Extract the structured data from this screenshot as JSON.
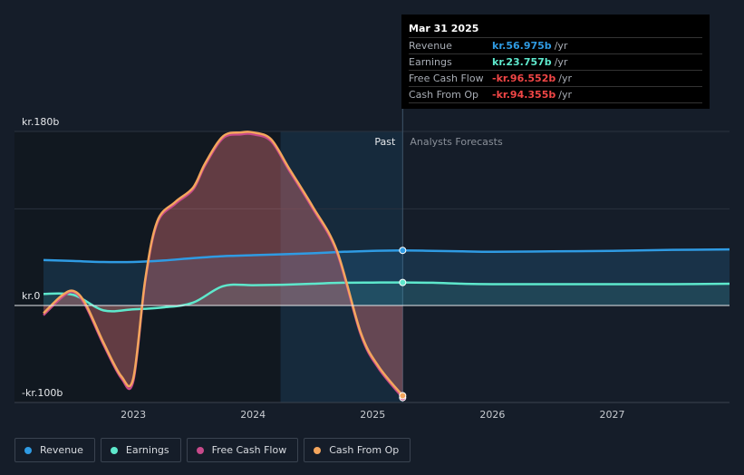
{
  "tooltip": {
    "date": "Mar 31 2025",
    "rows": [
      {
        "label": "Revenue",
        "value": "kr.56.975b",
        "unit": "/yr",
        "color": "#2f9be3"
      },
      {
        "label": "Earnings",
        "value": "kr.23.757b",
        "unit": "/yr",
        "color": "#5ee8cc"
      },
      {
        "label": "Free Cash Flow",
        "value": "-kr.96.552b",
        "unit": "/yr",
        "color": "#f04646"
      },
      {
        "label": "Cash From Op",
        "value": "-kr.94.355b",
        "unit": "/yr",
        "color": "#f04646"
      }
    ]
  },
  "legend": [
    {
      "label": "Revenue",
      "color": "#2f9be3"
    },
    {
      "label": "Earnings",
      "color": "#5ee8cc"
    },
    {
      "label": "Free Cash Flow",
      "color": "#c74a8b"
    },
    {
      "label": "Cash From Op",
      "color": "#f4a65d"
    }
  ],
  "chart_data": {
    "type": "line",
    "past_label": "Past",
    "forecast_label": "Analysts Forecasts",
    "ylabels": [
      {
        "text": "kr.180b",
        "value": 180
      },
      {
        "text": "kr.0",
        "value": 0
      },
      {
        "text": "-kr.100b",
        "value": -100
      }
    ],
    "ylim": [
      -100,
      180
    ],
    "xlim": [
      2022.25,
      2027.98
    ],
    "xticks": [
      {
        "text": "2023",
        "value": 2023.0
      },
      {
        "text": "2024",
        "value": 2024.0
      },
      {
        "text": "2025",
        "value": 2025.0
      },
      {
        "text": "2026",
        "value": 2026.0
      },
      {
        "text": "2027",
        "value": 2027.0
      }
    ],
    "past_end": 2025.25,
    "highlight_start": 2024.23,
    "gridlines": [
      180,
      100
    ],
    "series": [
      {
        "name": "Revenue",
        "color": "#2f9be3",
        "x": [
          2022.25,
          2022.5,
          2022.75,
          2023.0,
          2023.25,
          2023.5,
          2023.75,
          2024.0,
          2024.25,
          2024.5,
          2024.75,
          2025.0,
          2025.25,
          2025.5,
          2025.75,
          2026.0,
          2026.5,
          2027.0,
          2027.5,
          2027.98
        ],
        "y": [
          47,
          46,
          45,
          45,
          46.5,
          49,
          51,
          52,
          53,
          54,
          55.5,
          56.5,
          57,
          56.5,
          56,
          55.5,
          56,
          56.5,
          57.5,
          58
        ]
      },
      {
        "name": "Earnings",
        "color": "#5ee8cc",
        "x": [
          2022.25,
          2022.5,
          2022.75,
          2023.0,
          2023.25,
          2023.5,
          2023.75,
          2024.0,
          2024.25,
          2024.5,
          2024.75,
          2025.0,
          2025.25,
          2025.5,
          2025.75,
          2026.0,
          2026.5,
          2027.0,
          2027.5,
          2027.98
        ],
        "y": [
          12,
          11,
          -5,
          -4,
          -2,
          3,
          20,
          21,
          21.5,
          22.5,
          23.5,
          23.7,
          23.8,
          23.5,
          22.5,
          22,
          22,
          22,
          22,
          22.5
        ]
      },
      {
        "name": "Free Cash Flow",
        "color": "#c74a8b",
        "x": [
          2022.25,
          2022.4,
          2022.5,
          2022.6,
          2022.75,
          2022.9,
          2023.0,
          2023.1,
          2023.2,
          2023.35,
          2023.5,
          2023.6,
          2023.75,
          2023.9,
          2024.0,
          2024.15,
          2024.3,
          2024.5,
          2024.7,
          2024.9,
          2025.05,
          2025.25
        ],
        "y": [
          -10,
          8,
          14,
          0,
          -40,
          -75,
          -78,
          25,
          85,
          105,
          120,
          145,
          173,
          177,
          177,
          170,
          140,
          100,
          55,
          -30,
          -65,
          -95
        ]
      },
      {
        "name": "Cash From Op",
        "color": "#f4a65d",
        "x": [
          2022.25,
          2022.4,
          2022.5,
          2022.6,
          2022.75,
          2022.9,
          2023.0,
          2023.1,
          2023.2,
          2023.35,
          2023.5,
          2023.6,
          2023.75,
          2023.9,
          2024.0,
          2024.15,
          2024.3,
          2024.5,
          2024.7,
          2024.9,
          2025.05,
          2025.25
        ],
        "y": [
          -8,
          10,
          15,
          2,
          -38,
          -73,
          -75,
          27,
          87,
          107,
          122,
          147,
          175,
          179,
          179,
          172,
          142,
          102,
          57,
          -28,
          -63,
          -93
        ]
      }
    ]
  }
}
